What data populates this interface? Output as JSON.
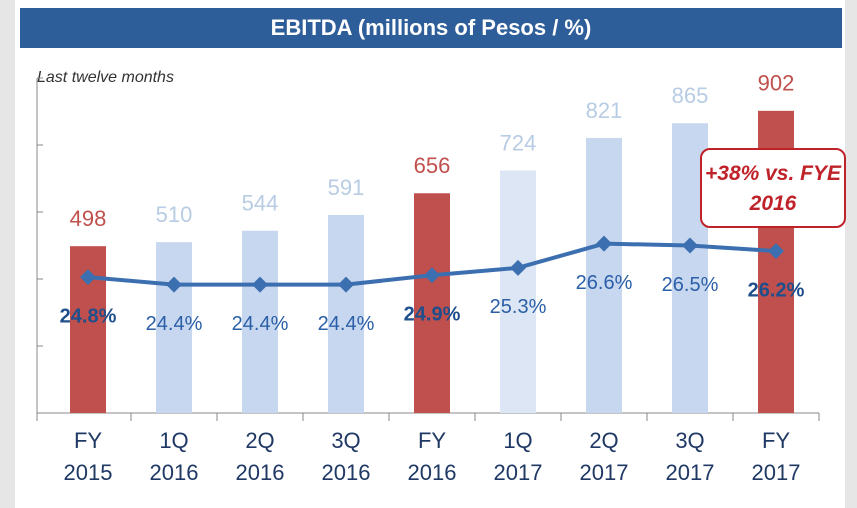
{
  "chart_data": {
    "type": "bar-line",
    "title": "EBITDA (millions of Pesos / %)",
    "subtitle": "Last twelve months",
    "categories": [
      "FY 2015",
      "1Q 2016",
      "2Q 2016",
      "3Q 2016",
      "FY 2016",
      "1Q 2017",
      "2Q 2017",
      "3Q 2017",
      "FY 2017"
    ],
    "series": [
      {
        "type": "bar",
        "values": [
          498,
          510,
          544,
          591,
          656,
          724,
          821,
          865,
          902
        ],
        "colors": [
          "#c0504d",
          "#c6d7ef",
          "#c6d7ef",
          "#c6d7ef",
          "#c0504d",
          "#dce6f4",
          "#c6d7ef",
          "#c6d7ef",
          "#c0504d"
        ]
      },
      {
        "type": "line",
        "axis": "y2",
        "color": "#3c6fb0",
        "values": [
          24.8,
          24.4,
          24.4,
          24.4,
          24.9,
          25.3,
          26.6,
          26.5,
          26.2
        ],
        "value_labels": [
          "24.8%",
          "24.4%",
          "24.4%",
          "24.4%",
          "24.9%",
          "25.3%",
          "26.6%",
          "26.5%",
          "26.2%"
        ],
        "value_label_bold": [
          true,
          false,
          false,
          false,
          true,
          false,
          false,
          false,
          true
        ]
      }
    ],
    "ylim": [
      0,
      1000
    ],
    "yticks": [
      0,
      200,
      400,
      600,
      800,
      1000
    ],
    "y2lim": [
      17.5,
      35.5
    ],
    "annotation": "+38% vs. FYE 2016"
  }
}
